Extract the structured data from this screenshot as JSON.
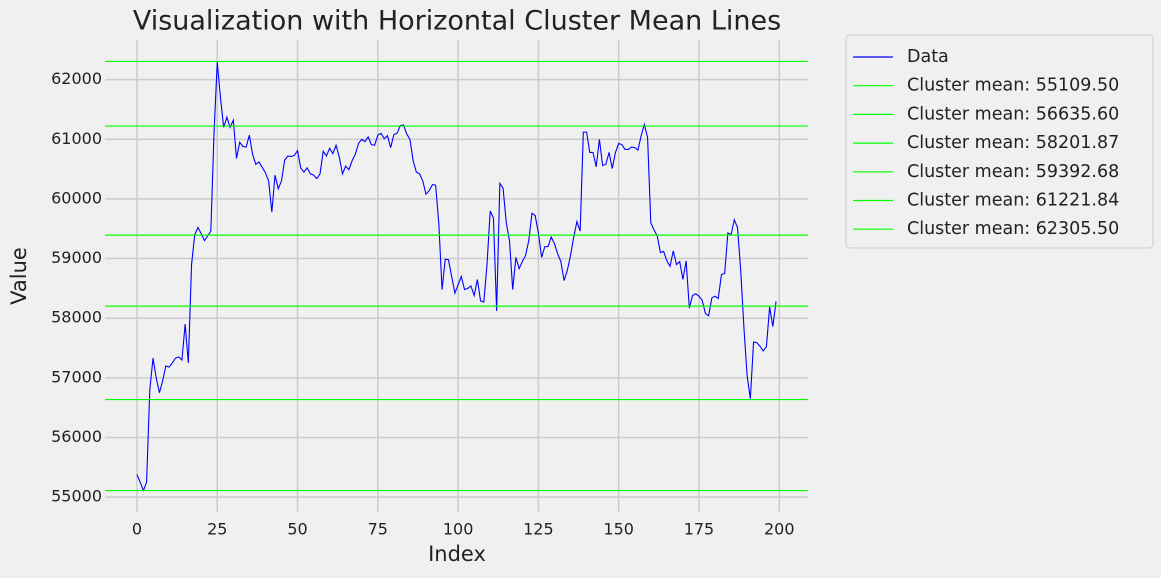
{
  "chart_data": {
    "type": "line",
    "title": "Visualization with Horizontal Cluster Mean Lines",
    "x_label": "Index",
    "y_label": "Value",
    "x": [
      0,
      1,
      2,
      3,
      4,
      5,
      6,
      7,
      8,
      9,
      10,
      11,
      12,
      13,
      14,
      15,
      16,
      17,
      18,
      19,
      20,
      21,
      22,
      23,
      24,
      25,
      26,
      27,
      28,
      29,
      30,
      31,
      32,
      33,
      34,
      35,
      36,
      37,
      38,
      39,
      40,
      41,
      42,
      43,
      44,
      45,
      46,
      47,
      48,
      49,
      50,
      51,
      52,
      53,
      54,
      55,
      56,
      57,
      58,
      59,
      60,
      61,
      62,
      63,
      64,
      65,
      66,
      67,
      68,
      69,
      70,
      71,
      72,
      73,
      74,
      75,
      76,
      77,
      78,
      79,
      80,
      81,
      82,
      83,
      84,
      85,
      86,
      87,
      88,
      89,
      90,
      91,
      92,
      93,
      94,
      95,
      96,
      97,
      98,
      99,
      100,
      101,
      102,
      103,
      104,
      105,
      106,
      107,
      108,
      109,
      110,
      111,
      112,
      113,
      114,
      115,
      116,
      117,
      118,
      119,
      120,
      121,
      122,
      123,
      124,
      125,
      126,
      127,
      128,
      129,
      130,
      131,
      132,
      133,
      134,
      135,
      136,
      137,
      138,
      139,
      140,
      141,
      142,
      143,
      144,
      145,
      146,
      147,
      148,
      149,
      150,
      151,
      152,
      153,
      154,
      155,
      156,
      157,
      158,
      159,
      160,
      161,
      162,
      163,
      164,
      165,
      166,
      167,
      168,
      169,
      170,
      171,
      172,
      173,
      174,
      175,
      176,
      177,
      178,
      179,
      180,
      181,
      182,
      183,
      184,
      185,
      186,
      187,
      188,
      189,
      190,
      191,
      192,
      193,
      194,
      195,
      196,
      197,
      198,
      199
    ],
    "series": [
      {
        "name": "Data",
        "color": "#0000ff",
        "values": [
          55380,
          55250,
          55110,
          55250,
          56800,
          57330,
          57000,
          56750,
          56950,
          57200,
          57180,
          57250,
          57330,
          57350,
          57300,
          57900,
          57250,
          58900,
          59400,
          59520,
          59420,
          59300,
          59380,
          59460,
          61100,
          62300,
          61700,
          61200,
          61370,
          61200,
          61320,
          60680,
          60950,
          60880,
          60870,
          61070,
          60750,
          60580,
          60620,
          60530,
          60440,
          60300,
          59780,
          60400,
          60170,
          60300,
          60650,
          60720,
          60710,
          60730,
          60810,
          60520,
          60450,
          60520,
          60420,
          60400,
          60340,
          60420,
          60800,
          60720,
          60850,
          60760,
          60900,
          60700,
          60420,
          60550,
          60490,
          60640,
          60750,
          60930,
          61000,
          60960,
          61040,
          60910,
          60900,
          61070,
          61100,
          61010,
          61060,
          60860,
          61080,
          61100,
          61230,
          61240,
          61090,
          61000,
          60640,
          60450,
          60420,
          60300,
          60080,
          60140,
          60240,
          60230,
          59580,
          58480,
          58990,
          58980,
          58700,
          58420,
          58560,
          58700,
          58480,
          58500,
          58540,
          58380,
          58650,
          58290,
          58270,
          58900,
          59800,
          59680,
          58120,
          60260,
          60180,
          59600,
          59300,
          58480,
          59020,
          58830,
          58950,
          59050,
          59300,
          59760,
          59720,
          59430,
          59020,
          59200,
          59200,
          59360,
          59250,
          59080,
          58950,
          58630,
          58800,
          59050,
          59360,
          59620,
          59460,
          61120,
          61120,
          60780,
          60780,
          60540,
          61000,
          60560,
          60580,
          60780,
          60510,
          60780,
          60930,
          60910,
          60830,
          60830,
          60870,
          60860,
          60820,
          61060,
          61250,
          61030,
          59600,
          59480,
          59380,
          59100,
          59120,
          58960,
          58870,
          59130,
          58900,
          58950,
          58650,
          58960,
          58170,
          58380,
          58410,
          58370,
          58300,
          58080,
          58040,
          58340,
          58370,
          58330,
          58730,
          58750,
          59430,
          59400,
          59650,
          59520,
          58800,
          57840,
          57030,
          56650,
          57600,
          57590,
          57530,
          57450,
          57520,
          58190,
          57860,
          58280
        ]
      }
    ],
    "hlines": [
      {
        "name": "Cluster mean: 55109.50",
        "value": 55109.5,
        "color": "#00ff00"
      },
      {
        "name": "Cluster mean: 56635.60",
        "value": 56635.6,
        "color": "#00ff00"
      },
      {
        "name": "Cluster mean: 58201.87",
        "value": 58201.87,
        "color": "#00ff00"
      },
      {
        "name": "Cluster mean: 59392.68",
        "value": 59392.68,
        "color": "#00ff00"
      },
      {
        "name": "Cluster mean: 61221.84",
        "value": 61221.84,
        "color": "#00ff00"
      },
      {
        "name": "Cluster mean: 62305.50",
        "value": 62305.5,
        "color": "#00ff00"
      }
    ],
    "xlim": [
      -9.95,
      208.95
    ],
    "xticks": [
      0,
      25,
      50,
      75,
      100,
      125,
      150,
      175,
      200
    ],
    "ylim": [
      54750,
      62665
    ],
    "yticks": [
      55000,
      56000,
      57000,
      58000,
      59000,
      60000,
      61000,
      62000
    ],
    "grid": true,
    "legend": "outside right"
  }
}
